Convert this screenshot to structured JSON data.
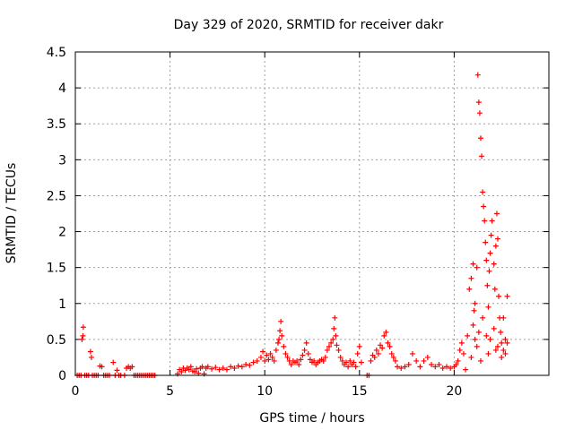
{
  "chart_data": {
    "type": "scatter",
    "title": "Day 329 of 2020, SRMTID for receiver dakr",
    "xlabel": "GPS time / hours",
    "ylabel": "SRMTID / TECUs",
    "xlim": [
      0,
      25
    ],
    "ylim": [
      0,
      4.5
    ],
    "x_ticks": [
      0,
      5,
      10,
      15,
      20
    ],
    "x_tick_labels": [
      "0",
      "5",
      "10",
      "15",
      "20"
    ],
    "y_ticks": [
      0,
      0.5,
      1,
      1.5,
      2,
      2.5,
      3,
      3.5,
      4,
      4.5
    ],
    "y_tick_labels": [
      "0",
      "0.5",
      "1",
      "1.5",
      "2",
      "2.5",
      "3",
      "3.5",
      "4",
      "4.5"
    ],
    "grid": true,
    "marker": "+",
    "series": [
      {
        "color": "#ff0000",
        "points": [
          [
            0.1,
            0
          ],
          [
            0.2,
            0
          ],
          [
            0.3,
            0
          ],
          [
            0.35,
            0.5
          ],
          [
            0.4,
            0.55
          ],
          [
            0.42,
            0.67
          ],
          [
            0.5,
            0
          ],
          [
            0.6,
            0
          ],
          [
            0.7,
            0
          ],
          [
            0.8,
            0.33
          ],
          [
            0.85,
            0.25
          ],
          [
            0.9,
            0
          ],
          [
            1.0,
            0
          ],
          [
            1.1,
            0
          ],
          [
            1.2,
            0
          ],
          [
            1.3,
            0.13
          ],
          [
            1.4,
            0.12
          ],
          [
            1.5,
            0
          ],
          [
            1.6,
            0
          ],
          [
            1.7,
            0
          ],
          [
            1.8,
            0
          ],
          [
            2.0,
            0.18
          ],
          [
            2.1,
            0
          ],
          [
            2.2,
            0.07
          ],
          [
            2.3,
            0
          ],
          [
            2.4,
            0
          ],
          [
            2.6,
            0
          ],
          [
            2.7,
            0.1
          ],
          [
            2.8,
            0.12
          ],
          [
            2.9,
            0.1
          ],
          [
            3.0,
            0.12
          ],
          [
            3.1,
            0
          ],
          [
            3.2,
            0
          ],
          [
            3.3,
            0
          ],
          [
            3.4,
            0
          ],
          [
            3.5,
            0
          ],
          [
            3.6,
            0
          ],
          [
            3.7,
            0
          ],
          [
            3.8,
            0
          ],
          [
            3.9,
            0
          ],
          [
            4.0,
            0
          ],
          [
            4.1,
            0
          ],
          [
            4.2,
            0
          ],
          [
            5.4,
            0.02
          ],
          [
            5.5,
            0.08
          ],
          [
            5.6,
            0.05
          ],
          [
            5.7,
            0.1
          ],
          [
            5.8,
            0.07
          ],
          [
            5.9,
            0.1
          ],
          [
            6.0,
            0.08
          ],
          [
            6.1,
            0.12
          ],
          [
            6.2,
            0.06
          ],
          [
            6.3,
            0.05
          ],
          [
            6.4,
            0.09
          ],
          [
            6.5,
            0.03
          ],
          [
            6.6,
            0.1
          ],
          [
            6.7,
            0.12
          ],
          [
            6.8,
            0.02
          ],
          [
            6.9,
            0.1
          ],
          [
            7.0,
            0.12
          ],
          [
            7.2,
            0.09
          ],
          [
            7.4,
            0.11
          ],
          [
            7.6,
            0.08
          ],
          [
            7.8,
            0.1
          ],
          [
            8.0,
            0.08
          ],
          [
            8.2,
            0.12
          ],
          [
            8.4,
            0.1
          ],
          [
            8.6,
            0.13
          ],
          [
            8.8,
            0.12
          ],
          [
            9.0,
            0.15
          ],
          [
            9.2,
            0.14
          ],
          [
            9.4,
            0.18
          ],
          [
            9.6,
            0.2
          ],
          [
            9.8,
            0.25
          ],
          [
            9.9,
            0.33
          ],
          [
            10.0,
            0.2
          ],
          [
            10.1,
            0.28
          ],
          [
            10.2,
            0.22
          ],
          [
            10.3,
            0.3
          ],
          [
            10.4,
            0.25
          ],
          [
            10.5,
            0.2
          ],
          [
            10.6,
            0.35
          ],
          [
            10.7,
            0.45
          ],
          [
            10.75,
            0.5
          ],
          [
            10.8,
            0.62
          ],
          [
            10.85,
            0.75
          ],
          [
            10.9,
            0.55
          ],
          [
            11.0,
            0.4
          ],
          [
            11.1,
            0.3
          ],
          [
            11.2,
            0.25
          ],
          [
            11.3,
            0.2
          ],
          [
            11.4,
            0.15
          ],
          [
            11.5,
            0.2
          ],
          [
            11.6,
            0.18
          ],
          [
            11.7,
            0.2
          ],
          [
            11.8,
            0.15
          ],
          [
            11.9,
            0.22
          ],
          [
            12.0,
            0.28
          ],
          [
            12.1,
            0.35
          ],
          [
            12.2,
            0.45
          ],
          [
            12.3,
            0.3
          ],
          [
            12.4,
            0.22
          ],
          [
            12.5,
            0.18
          ],
          [
            12.6,
            0.2
          ],
          [
            12.7,
            0.15
          ],
          [
            12.8,
            0.18
          ],
          [
            12.9,
            0.2
          ],
          [
            13.0,
            0.22
          ],
          [
            13.1,
            0.2
          ],
          [
            13.2,
            0.25
          ],
          [
            13.3,
            0.35
          ],
          [
            13.4,
            0.4
          ],
          [
            13.5,
            0.45
          ],
          [
            13.6,
            0.5
          ],
          [
            13.65,
            0.65
          ],
          [
            13.7,
            0.8
          ],
          [
            13.75,
            0.55
          ],
          [
            13.8,
            0.42
          ],
          [
            13.9,
            0.35
          ],
          [
            14.0,
            0.25
          ],
          [
            14.1,
            0.2
          ],
          [
            14.2,
            0.15
          ],
          [
            14.3,
            0.18
          ],
          [
            14.4,
            0.12
          ],
          [
            14.5,
            0.2
          ],
          [
            14.6,
            0.15
          ],
          [
            14.7,
            0.18
          ],
          [
            14.8,
            0.12
          ],
          [
            14.9,
            0.3
          ],
          [
            15.0,
            0.4
          ],
          [
            15.1,
            0.18
          ],
          [
            15.4,
            0
          ],
          [
            15.5,
            0
          ],
          [
            15.6,
            0.2
          ],
          [
            15.7,
            0.28
          ],
          [
            15.8,
            0.25
          ],
          [
            15.9,
            0.35
          ],
          [
            16.0,
            0.3
          ],
          [
            16.1,
            0.42
          ],
          [
            16.2,
            0.38
          ],
          [
            16.3,
            0.55
          ],
          [
            16.4,
            0.6
          ],
          [
            16.5,
            0.45
          ],
          [
            16.6,
            0.4
          ],
          [
            16.7,
            0.3
          ],
          [
            16.8,
            0.25
          ],
          [
            16.9,
            0.2
          ],
          [
            17.0,
            0.12
          ],
          [
            17.2,
            0.1
          ],
          [
            17.4,
            0.12
          ],
          [
            17.6,
            0.15
          ],
          [
            17.8,
            0.3
          ],
          [
            18.0,
            0.2
          ],
          [
            18.2,
            0.12
          ],
          [
            18.4,
            0.2
          ],
          [
            18.6,
            0.25
          ],
          [
            18.8,
            0.15
          ],
          [
            19.0,
            0.12
          ],
          [
            19.2,
            0.15
          ],
          [
            19.4,
            0.1
          ],
          [
            19.6,
            0.12
          ],
          [
            19.8,
            0.1
          ],
          [
            20.0,
            0.12
          ],
          [
            20.1,
            0.15
          ],
          [
            20.2,
            0.2
          ],
          [
            20.3,
            0.35
          ],
          [
            20.4,
            0.45
          ],
          [
            20.5,
            0.3
          ],
          [
            20.6,
            0.08
          ],
          [
            20.7,
            0.55
          ],
          [
            20.8,
            1.2
          ],
          [
            20.9,
            1.35
          ],
          [
            21.0,
            1.55
          ],
          [
            21.05,
            0.9
          ],
          [
            21.1,
            1.0
          ],
          [
            21.2,
            1.5
          ],
          [
            21.25,
            4.18
          ],
          [
            21.3,
            3.8
          ],
          [
            21.35,
            3.65
          ],
          [
            21.4,
            3.3
          ],
          [
            21.45,
            3.05
          ],
          [
            21.5,
            2.55
          ],
          [
            21.55,
            2.35
          ],
          [
            21.6,
            2.15
          ],
          [
            21.65,
            1.85
          ],
          [
            21.7,
            1.6
          ],
          [
            21.75,
            1.25
          ],
          [
            21.8,
            0.95
          ],
          [
            21.85,
            1.45
          ],
          [
            21.9,
            1.7
          ],
          [
            21.95,
            1.95
          ],
          [
            22.0,
            2.15
          ],
          [
            22.1,
            1.55
          ],
          [
            22.15,
            1.2
          ],
          [
            22.2,
            1.8
          ],
          [
            22.25,
            2.25
          ],
          [
            22.3,
            1.9
          ],
          [
            22.35,
            1.1
          ],
          [
            22.4,
            0.8
          ],
          [
            22.45,
            0.6
          ],
          [
            22.5,
            0.45
          ],
          [
            22.6,
            0.35
          ],
          [
            22.7,
            0.3
          ],
          [
            22.8,
            0.45
          ],
          [
            21.0,
            0.7
          ],
          [
            21.1,
            0.5
          ],
          [
            21.2,
            0.4
          ],
          [
            21.3,
            0.6
          ],
          [
            21.5,
            0.8
          ],
          [
            21.7,
            0.55
          ],
          [
            21.9,
            0.5
          ],
          [
            22.1,
            0.65
          ],
          [
            22.3,
            0.4
          ],
          [
            22.5,
            0.25
          ],
          [
            22.7,
            0.5
          ],
          [
            20.9,
            0.25
          ],
          [
            21.4,
            0.2
          ],
          [
            21.8,
            0.3
          ],
          [
            22.2,
            0.35
          ],
          [
            22.6,
            0.8
          ],
          [
            22.8,
            1.1
          ]
        ]
      }
    ]
  }
}
